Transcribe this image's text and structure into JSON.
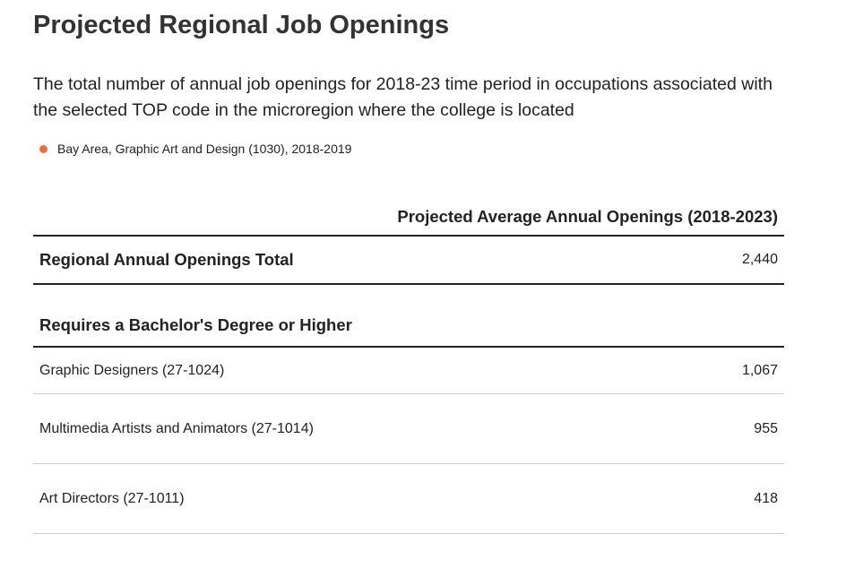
{
  "header": {
    "title": "Projected Regional Job Openings",
    "description": "The total number of annual job openings for 2018-23 time period in occupations associated with the selected TOP code in the microregion where the college is located"
  },
  "legend": {
    "label": "Bay Area, Graphic Art and Design (1030), 2018-2019",
    "color": "#e8703a"
  },
  "table": {
    "column_header": "Projected Average Annual Openings (2018-2023)",
    "total": {
      "label": "Regional Annual Openings Total",
      "value": "2,440"
    },
    "section": "Requires a Bachelor's Degree or Higher",
    "rows": [
      [
        "Graphic Designers (27-1024)",
        "1,067"
      ],
      [
        "Multimedia Artists and Animators (27-1014)",
        "955"
      ],
      [
        "Art Directors (27-1011)",
        "418"
      ]
    ]
  }
}
